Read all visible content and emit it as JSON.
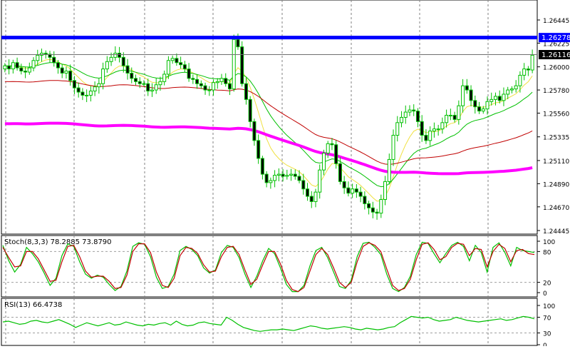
{
  "chart_data": [
    {
      "type": "candlestick",
      "panel": "main",
      "y_ticks": [
        "1.26445",
        "1.26225",
        "1.26000",
        "1.25780",
        "1.25560",
        "1.25335",
        "1.25110",
        "1.24890",
        "1.24670",
        "1.24445"
      ],
      "ylim": [
        1.24445,
        1.26445
      ],
      "resistance": {
        "value": 1.26278,
        "label": "1.26278",
        "color": "#0000ff"
      },
      "last_price": {
        "value": 1.26116,
        "label": "1.26116",
        "color": "#000000"
      },
      "bull_color": "#00c000",
      "bear_color": "#00c000",
      "close_series": [
        1.2601,
        1.2598,
        1.2604,
        1.2599,
        1.2596,
        1.2595,
        1.2599,
        1.2606,
        1.2611,
        1.2613,
        1.2612,
        1.2609,
        1.2604,
        1.2599,
        1.2594,
        1.2596,
        1.2587,
        1.258,
        1.2576,
        1.2573,
        1.2573,
        1.2577,
        1.2581,
        1.2584,
        1.2598,
        1.2605,
        1.2609,
        1.2613,
        1.2609,
        1.2601,
        1.2594,
        1.2589,
        1.2586,
        1.2584,
        1.2584,
        1.2577,
        1.2578,
        1.2583,
        1.2586,
        1.2593,
        1.2606,
        1.2608,
        1.2604,
        1.2602,
        1.2598,
        1.2589,
        1.2588,
        1.2584,
        1.2582,
        1.2578,
        1.2578,
        1.2585,
        1.2586,
        1.2589,
        1.2584,
        1.2579,
        1.2626,
        1.2619,
        1.2584,
        1.2569,
        1.2548,
        1.253,
        1.2513,
        1.2498,
        1.249,
        1.2492,
        1.2497,
        1.2498,
        1.2496,
        1.2497,
        1.2498,
        1.2496,
        1.2492,
        1.2484,
        1.2477,
        1.2472,
        1.2481,
        1.2502,
        1.2518,
        1.2527,
        1.2526,
        1.2508,
        1.2491,
        1.2485,
        1.248,
        1.2484,
        1.2481,
        1.2477,
        1.247,
        1.2466,
        1.2462,
        1.2461,
        1.2474,
        1.2491,
        1.2512,
        1.2535,
        1.2547,
        1.2552,
        1.2557,
        1.2559,
        1.2558,
        1.2548,
        1.2535,
        1.253,
        1.2539,
        1.2541,
        1.2541,
        1.2547,
        1.2554,
        1.2554,
        1.255,
        1.2563,
        1.2582,
        1.2578,
        1.2568,
        1.2562,
        1.2558,
        1.256,
        1.2567,
        1.2569,
        1.2572,
        1.2568,
        1.2574,
        1.2578,
        1.2579,
        1.2582,
        1.2592,
        1.2598,
        1.2597,
        1.2611
      ],
      "moving_averages": [
        {
          "color": "#f0e040",
          "width": 1
        },
        {
          "color": "#00c000",
          "width": 1
        },
        {
          "color": "#c00000",
          "width": 1
        },
        {
          "color": "#ff00ff",
          "width": 4
        }
      ]
    },
    {
      "type": "line",
      "panel": "stochastic",
      "label": "Stoch(8,3,3) 78.2885 73.8790",
      "y_ticks": [
        "100",
        "80",
        "20",
        "0"
      ],
      "ylim": [
        0,
        100
      ],
      "levels": [
        80,
        20
      ],
      "series": [
        {
          "color": "#00c000",
          "values": [
            92,
            62,
            40,
            55,
            88,
            76,
            60,
            38,
            14,
            28,
            72,
            95,
            90,
            60,
            36,
            28,
            34,
            30,
            16,
            4,
            12,
            42,
            90,
            97,
            94,
            70,
            30,
            8,
            12,
            36,
            82,
            90,
            84,
            72,
            48,
            38,
            44,
            78,
            92,
            88,
            68,
            36,
            10,
            32,
            62,
            86,
            76,
            48,
            16,
            2,
            2,
            14,
            52,
            82,
            88,
            68,
            40,
            12,
            8,
            24,
            70,
            96,
            98,
            88,
            74,
            36,
            8,
            2,
            10,
            32,
            74,
            98,
            96,
            76,
            58,
            76,
            92,
            98,
            90,
            62,
            92,
            78,
            40,
            88,
            97,
            78,
            52,
            88,
            82,
            80,
            78
          ]
        },
        {
          "color": "#c00000",
          "values": [
            88,
            68,
            50,
            52,
            80,
            80,
            66,
            44,
            22,
            24,
            60,
            90,
            92,
            70,
            42,
            30,
            32,
            32,
            22,
            8,
            10,
            34,
            80,
            95,
            95,
            78,
            40,
            14,
            10,
            28,
            72,
            88,
            86,
            76,
            54,
            40,
            42,
            70,
            88,
            90,
            74,
            44,
            16,
            26,
            54,
            80,
            80,
            56,
            24,
            6,
            2,
            10,
            42,
            74,
            86,
            74,
            48,
            20,
            10,
            20,
            60,
            90,
            97,
            92,
            80,
            46,
            14,
            4,
            8,
            26,
            64,
            94,
            97,
            84,
            64,
            70,
            88,
            96,
            94,
            72,
            86,
            84,
            50,
            80,
            94,
            86,
            60,
            82,
            84,
            76,
            74
          ]
        }
      ]
    },
    {
      "type": "line",
      "panel": "rsi",
      "label": "RSI(13) 66.4738",
      "y_ticks": [
        "100",
        "70",
        "30",
        "0"
      ],
      "ylim": [
        0,
        100
      ],
      "levels": [
        70,
        30
      ],
      "series": [
        {
          "color": "#00c000",
          "values": [
            58,
            60,
            56,
            52,
            54,
            60,
            62,
            58,
            56,
            60,
            64,
            58,
            52,
            44,
            50,
            56,
            52,
            48,
            52,
            56,
            50,
            52,
            58,
            54,
            50,
            48,
            52,
            50,
            54,
            56,
            50,
            60,
            52,
            48,
            50,
            56,
            58,
            54,
            52,
            50,
            70,
            62,
            52,
            44,
            40,
            36,
            34,
            36,
            38,
            38,
            40,
            38,
            36,
            40,
            44,
            48,
            46,
            42,
            40,
            42,
            44,
            46,
            44,
            40,
            38,
            42,
            40,
            38,
            40,
            44,
            46,
            56,
            64,
            72,
            70,
            68,
            70,
            64,
            60,
            62,
            64,
            70,
            66,
            62,
            60,
            58,
            60,
            62,
            64,
            66,
            62,
            64,
            68,
            72,
            70,
            66
          ]
        }
      ]
    }
  ]
}
